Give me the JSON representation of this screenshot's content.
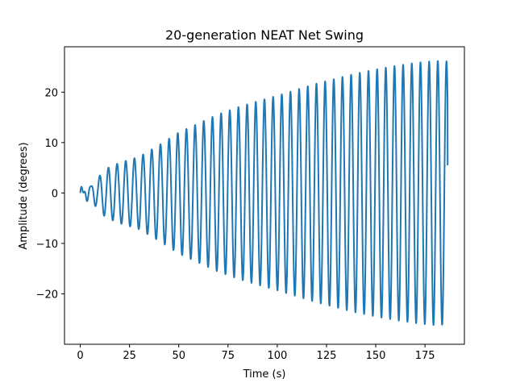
{
  "chart_data": {
    "type": "line",
    "title": "20-generation NEAT Net Swing",
    "xlabel": "Time (s)",
    "ylabel": "Amplitude (degrees)",
    "xlim": [
      -8,
      195
    ],
    "ylim": [
      -30,
      29
    ],
    "xticks": [
      0,
      25,
      50,
      75,
      100,
      125,
      150,
      175
    ],
    "yticks": [
      -20,
      -10,
      0,
      10,
      20
    ],
    "ytick_labels": [
      "−20",
      "−10",
      "0",
      "10",
      "20"
    ],
    "grid": false,
    "legend": "none",
    "series": [
      {
        "color": "#1f77b4",
        "period_s": 4.4,
        "envelope": [
          [
            0,
            0.6
          ],
          [
            5,
            1.5
          ],
          [
            8,
            2.5
          ],
          [
            12,
            4.5
          ],
          [
            15,
            5.2
          ],
          [
            20,
            6.0
          ],
          [
            30,
            7.2
          ],
          [
            40,
            9.5
          ],
          [
            50,
            12.0
          ],
          [
            60,
            13.8
          ],
          [
            70,
            15.6
          ],
          [
            80,
            17.0
          ],
          [
            90,
            18.2
          ],
          [
            100,
            19.3
          ],
          [
            110,
            20.5
          ],
          [
            120,
            21.7
          ],
          [
            130,
            22.7
          ],
          [
            140,
            23.7
          ],
          [
            150,
            24.5
          ],
          [
            160,
            25.2
          ],
          [
            170,
            25.8
          ],
          [
            180,
            26.2
          ],
          [
            185,
            26.1
          ]
        ],
        "end_x": 186.5,
        "end_y": 5.5
      }
    ]
  }
}
